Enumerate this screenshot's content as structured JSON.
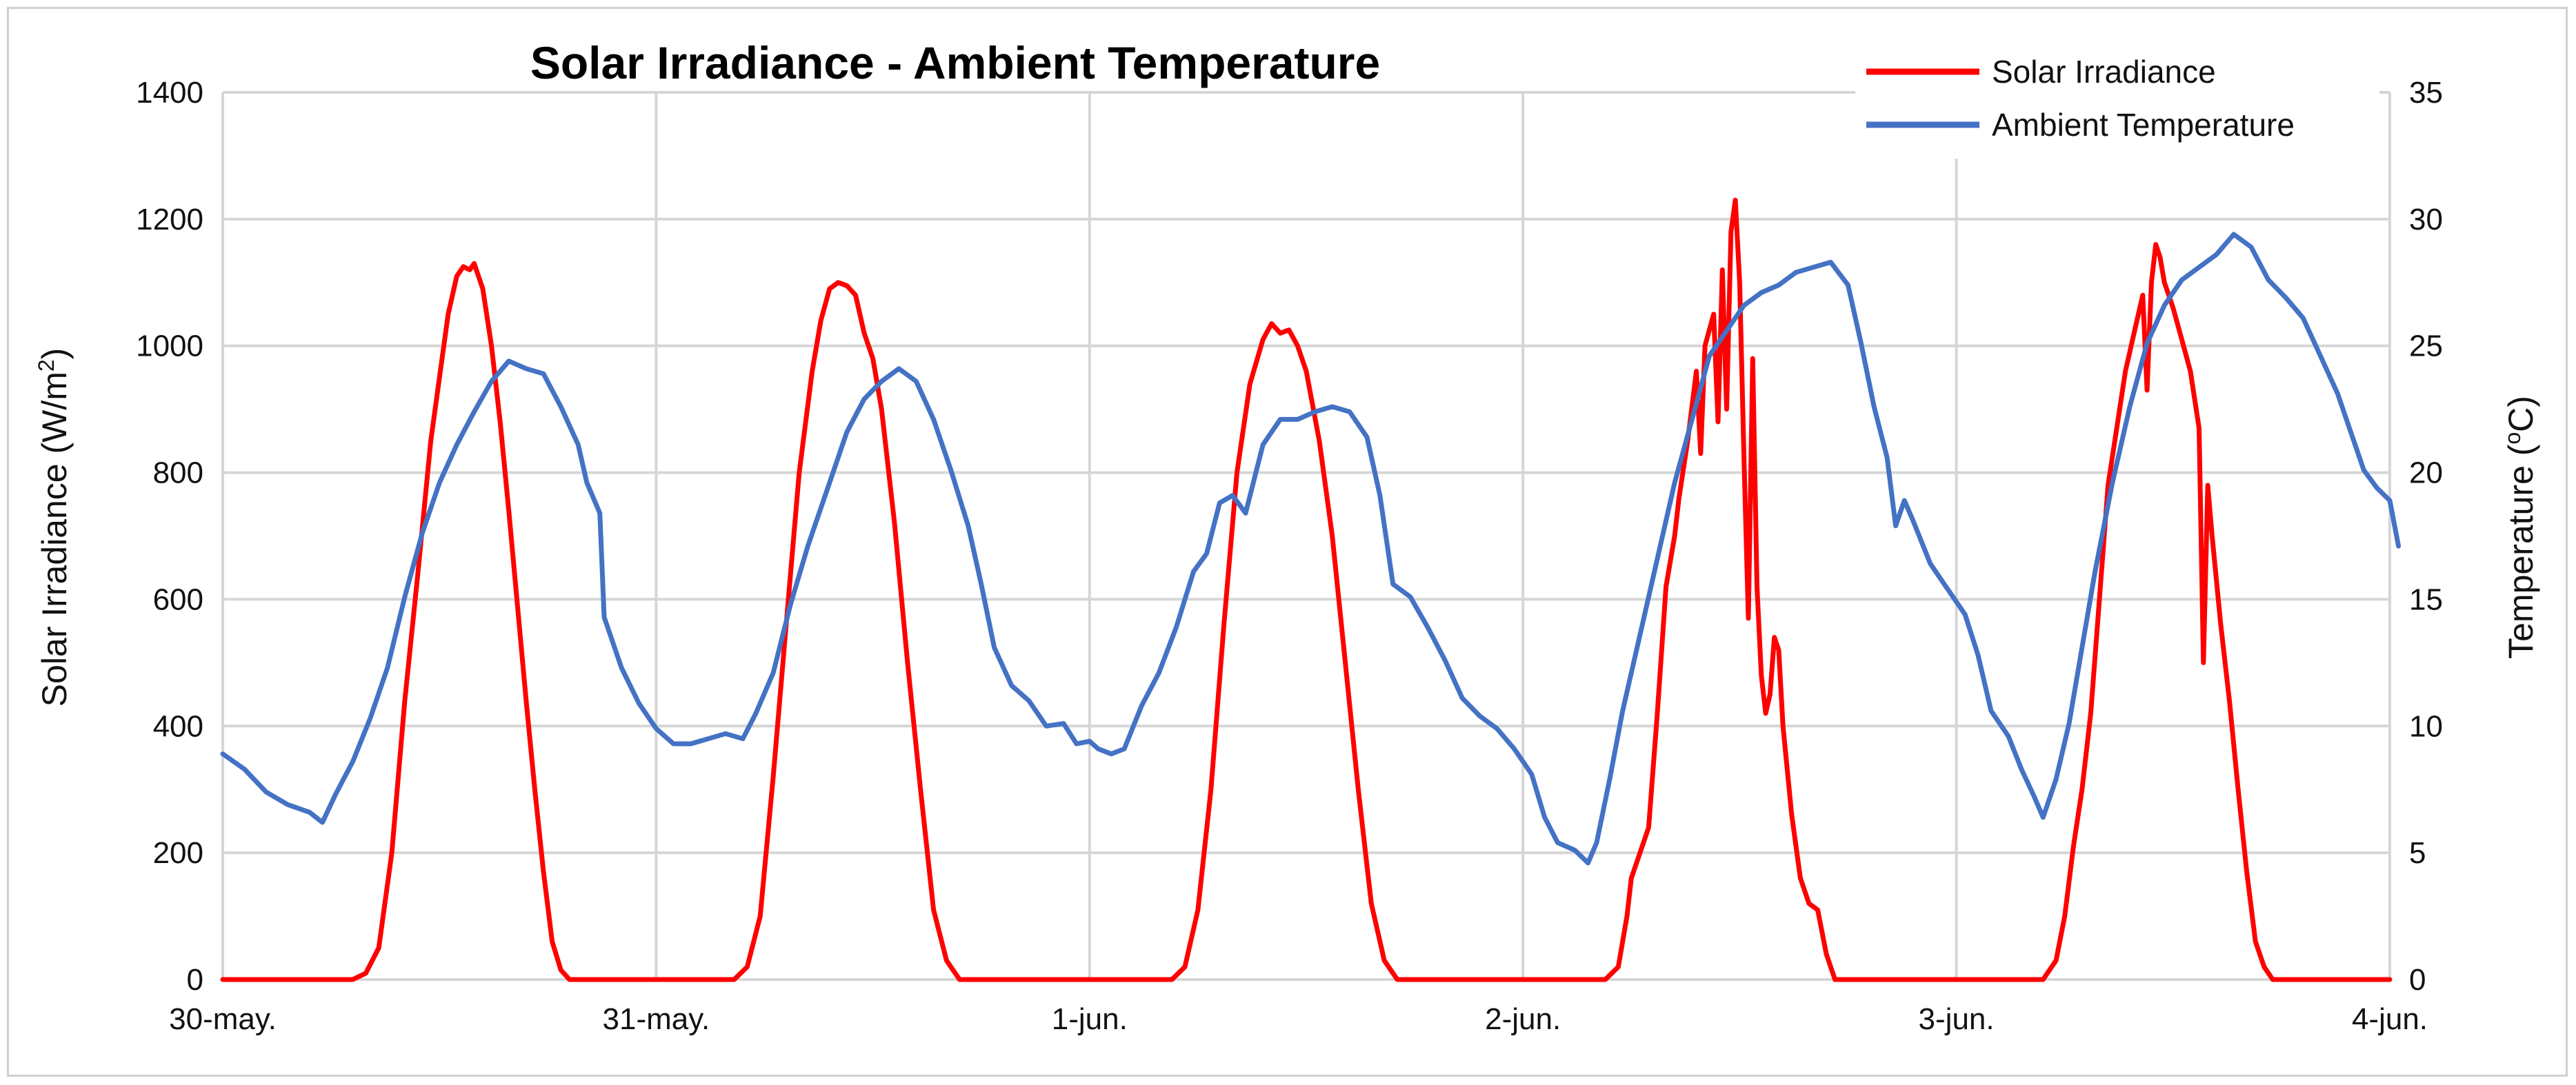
{
  "chart_data": {
    "type": "line",
    "title": "Solar Irradiance - Ambient Temperature",
    "ylabel": "Solar Irradiance (W/m",
    "ylabel_sup": "2",
    "ylabel_end": ")",
    "y2label": "Temperature (",
    "y2label_sup": "o",
    "y2label_end": "C)",
    "ylim": [
      0,
      1400
    ],
    "y2lim": [
      0,
      35
    ],
    "xlim": [
      0,
      5
    ],
    "y_ticks": [
      "0",
      "200",
      "400",
      "600",
      "800",
      "1000",
      "1200",
      "1400"
    ],
    "y2_ticks": [
      "0",
      "5",
      "10",
      "15",
      "20",
      "25",
      "30",
      "35"
    ],
    "x_ticks": [
      "30-may.",
      "31-may.",
      "1-jun.",
      "2-jun.",
      "3-jun.",
      "4-jun."
    ],
    "grid": true,
    "legend_position": "top-right",
    "series": [
      {
        "name": "Solar Irradiance",
        "axis": "left",
        "color": "#ff0000",
        "points": [
          [
            0.0,
            0
          ],
          [
            0.3,
            0
          ],
          [
            0.33,
            10
          ],
          [
            0.36,
            50
          ],
          [
            0.39,
            200
          ],
          [
            0.42,
            440
          ],
          [
            0.45,
            640
          ],
          [
            0.48,
            850
          ],
          [
            0.5,
            950
          ],
          [
            0.52,
            1050
          ],
          [
            0.54,
            1110
          ],
          [
            0.555,
            1125
          ],
          [
            0.57,
            1120
          ],
          [
            0.58,
            1130
          ],
          [
            0.6,
            1090
          ],
          [
            0.62,
            1000
          ],
          [
            0.64,
            880
          ],
          [
            0.66,
            740
          ],
          [
            0.68,
            590
          ],
          [
            0.7,
            440
          ],
          [
            0.72,
            300
          ],
          [
            0.74,
            170
          ],
          [
            0.76,
            60
          ],
          [
            0.78,
            15
          ],
          [
            0.8,
            0
          ],
          [
            1.0,
            0
          ],
          [
            1.18,
            0
          ],
          [
            1.21,
            20
          ],
          [
            1.24,
            100
          ],
          [
            1.27,
            320
          ],
          [
            1.3,
            560
          ],
          [
            1.33,
            800
          ],
          [
            1.36,
            960
          ],
          [
            1.38,
            1040
          ],
          [
            1.4,
            1090
          ],
          [
            1.42,
            1100
          ],
          [
            1.44,
            1095
          ],
          [
            1.46,
            1080
          ],
          [
            1.48,
            1020
          ],
          [
            1.5,
            980
          ],
          [
            1.52,
            900
          ],
          [
            1.55,
            720
          ],
          [
            1.58,
            500
          ],
          [
            1.61,
            300
          ],
          [
            1.64,
            110
          ],
          [
            1.67,
            30
          ],
          [
            1.7,
            0
          ],
          [
            2.0,
            0
          ],
          [
            2.19,
            0
          ],
          [
            2.22,
            20
          ],
          [
            2.25,
            110
          ],
          [
            2.28,
            300
          ],
          [
            2.31,
            560
          ],
          [
            2.34,
            800
          ],
          [
            2.37,
            940
          ],
          [
            2.4,
            1010
          ],
          [
            2.42,
            1035
          ],
          [
            2.44,
            1020
          ],
          [
            2.46,
            1025
          ],
          [
            2.48,
            1000
          ],
          [
            2.5,
            960
          ],
          [
            2.53,
            850
          ],
          [
            2.56,
            700
          ],
          [
            2.59,
            500
          ],
          [
            2.62,
            300
          ],
          [
            2.65,
            120
          ],
          [
            2.68,
            30
          ],
          [
            2.71,
            0
          ],
          [
            3.0,
            0
          ],
          [
            3.19,
            0
          ],
          [
            3.22,
            20
          ],
          [
            3.24,
            100
          ],
          [
            3.25,
            160
          ],
          [
            3.27,
            200
          ],
          [
            3.29,
            240
          ],
          [
            3.31,
            420
          ],
          [
            3.33,
            620
          ],
          [
            3.35,
            700
          ],
          [
            3.36,
            760
          ],
          [
            3.38,
            850
          ],
          [
            3.4,
            960
          ],
          [
            3.41,
            830
          ],
          [
            3.42,
            1000
          ],
          [
            3.44,
            1050
          ],
          [
            3.45,
            880
          ],
          [
            3.46,
            1120
          ],
          [
            3.47,
            900
          ],
          [
            3.48,
            1180
          ],
          [
            3.49,
            1230
          ],
          [
            3.5,
            1100
          ],
          [
            3.51,
            820
          ],
          [
            3.52,
            570
          ],
          [
            3.53,
            980
          ],
          [
            3.54,
            620
          ],
          [
            3.55,
            480
          ],
          [
            3.56,
            420
          ],
          [
            3.57,
            450
          ],
          [
            3.58,
            540
          ],
          [
            3.59,
            520
          ],
          [
            3.6,
            400
          ],
          [
            3.62,
            260
          ],
          [
            3.64,
            160
          ],
          [
            3.66,
            120
          ],
          [
            3.68,
            110
          ],
          [
            3.7,
            40
          ],
          [
            3.72,
            0
          ],
          [
            4.0,
            0
          ],
          [
            4.2,
            0
          ],
          [
            4.23,
            30
          ],
          [
            4.25,
            100
          ],
          [
            4.27,
            210
          ],
          [
            4.29,
            300
          ],
          [
            4.31,
            420
          ],
          [
            4.33,
            600
          ],
          [
            4.35,
            780
          ],
          [
            4.37,
            870
          ],
          [
            4.39,
            960
          ],
          [
            4.41,
            1020
          ],
          [
            4.43,
            1080
          ],
          [
            4.44,
            930
          ],
          [
            4.45,
            1100
          ],
          [
            4.46,
            1160
          ],
          [
            4.47,
            1140
          ],
          [
            4.48,
            1100
          ],
          [
            4.5,
            1060
          ],
          [
            4.52,
            1010
          ],
          [
            4.54,
            960
          ],
          [
            4.56,
            870
          ],
          [
            4.57,
            500
          ],
          [
            4.58,
            780
          ],
          [
            4.59,
            700
          ],
          [
            4.61,
            560
          ],
          [
            4.63,
            440
          ],
          [
            4.65,
            300
          ],
          [
            4.67,
            170
          ],
          [
            4.69,
            60
          ],
          [
            4.71,
            20
          ],
          [
            4.73,
            0
          ],
          [
            5.0,
            0
          ]
        ]
      },
      {
        "name": "Ambient Temperature",
        "axis": "right",
        "color": "#4472c4",
        "points": [
          [
            0.0,
            8.9
          ],
          [
            0.05,
            8.3
          ],
          [
            0.1,
            7.4
          ],
          [
            0.15,
            6.9
          ],
          [
            0.2,
            6.6
          ],
          [
            0.23,
            6.2
          ],
          [
            0.26,
            7.3
          ],
          [
            0.3,
            8.6
          ],
          [
            0.34,
            10.3
          ],
          [
            0.38,
            12.3
          ],
          [
            0.42,
            15.1
          ],
          [
            0.46,
            17.6
          ],
          [
            0.5,
            19.6
          ],
          [
            0.54,
            21.1
          ],
          [
            0.58,
            22.4
          ],
          [
            0.62,
            23.6
          ],
          [
            0.66,
            24.4
          ],
          [
            0.7,
            24.1
          ],
          [
            0.74,
            23.9
          ],
          [
            0.78,
            22.6
          ],
          [
            0.82,
            21.1
          ],
          [
            0.84,
            19.6
          ],
          [
            0.87,
            18.4
          ],
          [
            0.88,
            14.3
          ],
          [
            0.92,
            12.3
          ],
          [
            0.96,
            10.9
          ],
          [
            1.0,
            9.9
          ],
          [
            1.04,
            9.3
          ],
          [
            1.08,
            9.3
          ],
          [
            1.12,
            9.5
          ],
          [
            1.16,
            9.7
          ],
          [
            1.2,
            9.5
          ],
          [
            1.23,
            10.5
          ],
          [
            1.27,
            12.1
          ],
          [
            1.31,
            14.8
          ],
          [
            1.35,
            17.1
          ],
          [
            1.4,
            19.6
          ],
          [
            1.44,
            21.6
          ],
          [
            1.48,
            22.9
          ],
          [
            1.52,
            23.6
          ],
          [
            1.56,
            24.1
          ],
          [
            1.6,
            23.6
          ],
          [
            1.64,
            22.1
          ],
          [
            1.68,
            20.1
          ],
          [
            1.72,
            17.9
          ],
          [
            1.75,
            15.6
          ],
          [
            1.78,
            13.1
          ],
          [
            1.82,
            11.6
          ],
          [
            1.86,
            11.0
          ],
          [
            1.9,
            10.0
          ],
          [
            1.94,
            10.1
          ],
          [
            1.97,
            9.3
          ],
          [
            2.0,
            9.4
          ],
          [
            2.02,
            9.1
          ],
          [
            2.05,
            8.9
          ],
          [
            2.08,
            9.1
          ],
          [
            2.12,
            10.8
          ],
          [
            2.16,
            12.1
          ],
          [
            2.2,
            13.9
          ],
          [
            2.24,
            16.1
          ],
          [
            2.27,
            16.8
          ],
          [
            2.3,
            18.8
          ],
          [
            2.33,
            19.1
          ],
          [
            2.36,
            18.4
          ],
          [
            2.4,
            21.1
          ],
          [
            2.44,
            22.1
          ],
          [
            2.48,
            22.1
          ],
          [
            2.52,
            22.4
          ],
          [
            2.56,
            22.6
          ],
          [
            2.6,
            22.4
          ],
          [
            2.64,
            21.4
          ],
          [
            2.67,
            19.1
          ],
          [
            2.7,
            15.6
          ],
          [
            2.74,
            15.1
          ],
          [
            2.78,
            13.9
          ],
          [
            2.82,
            12.6
          ],
          [
            2.86,
            11.1
          ],
          [
            2.9,
            10.4
          ],
          [
            2.94,
            9.9
          ],
          [
            2.98,
            9.1
          ],
          [
            3.02,
            8.1
          ],
          [
            3.05,
            6.4
          ],
          [
            3.08,
            5.4
          ],
          [
            3.12,
            5.1
          ],
          [
            3.15,
            4.6
          ],
          [
            3.17,
            5.4
          ],
          [
            3.2,
            7.9
          ],
          [
            3.23,
            10.6
          ],
          [
            3.27,
            13.6
          ],
          [
            3.31,
            16.6
          ],
          [
            3.35,
            19.6
          ],
          [
            3.39,
            22.1
          ],
          [
            3.43,
            24.6
          ],
          [
            3.47,
            25.6
          ],
          [
            3.51,
            26.6
          ],
          [
            3.55,
            27.1
          ],
          [
            3.59,
            27.4
          ],
          [
            3.63,
            27.9
          ],
          [
            3.67,
            28.1
          ],
          [
            3.71,
            28.3
          ],
          [
            3.75,
            27.4
          ],
          [
            3.78,
            25.1
          ],
          [
            3.81,
            22.6
          ],
          [
            3.84,
            20.6
          ],
          [
            3.86,
            17.9
          ],
          [
            3.88,
            18.9
          ],
          [
            3.9,
            18.1
          ],
          [
            3.94,
            16.4
          ],
          [
            3.98,
            15.4
          ],
          [
            4.02,
            14.4
          ],
          [
            4.05,
            12.8
          ],
          [
            4.08,
            10.6
          ],
          [
            4.12,
            9.6
          ],
          [
            4.15,
            8.3
          ],
          [
            4.18,
            7.2
          ],
          [
            4.2,
            6.4
          ],
          [
            4.23,
            7.9
          ],
          [
            4.26,
            10.1
          ],
          [
            4.29,
            13.1
          ],
          [
            4.32,
            16.1
          ],
          [
            4.36,
            19.6
          ],
          [
            4.4,
            22.6
          ],
          [
            4.44,
            25.1
          ],
          [
            4.48,
            26.6
          ],
          [
            4.52,
            27.6
          ],
          [
            4.56,
            28.1
          ],
          [
            4.6,
            28.6
          ],
          [
            4.64,
            29.4
          ],
          [
            4.68,
            28.9
          ],
          [
            4.72,
            27.6
          ],
          [
            4.76,
            26.9
          ],
          [
            4.8,
            26.1
          ],
          [
            4.84,
            24.6
          ],
          [
            4.88,
            23.1
          ],
          [
            4.91,
            21.6
          ],
          [
            4.94,
            20.1
          ],
          [
            4.97,
            19.4
          ],
          [
            5.0,
            18.9
          ],
          [
            5.02,
            17.1
          ]
        ]
      }
    ]
  }
}
